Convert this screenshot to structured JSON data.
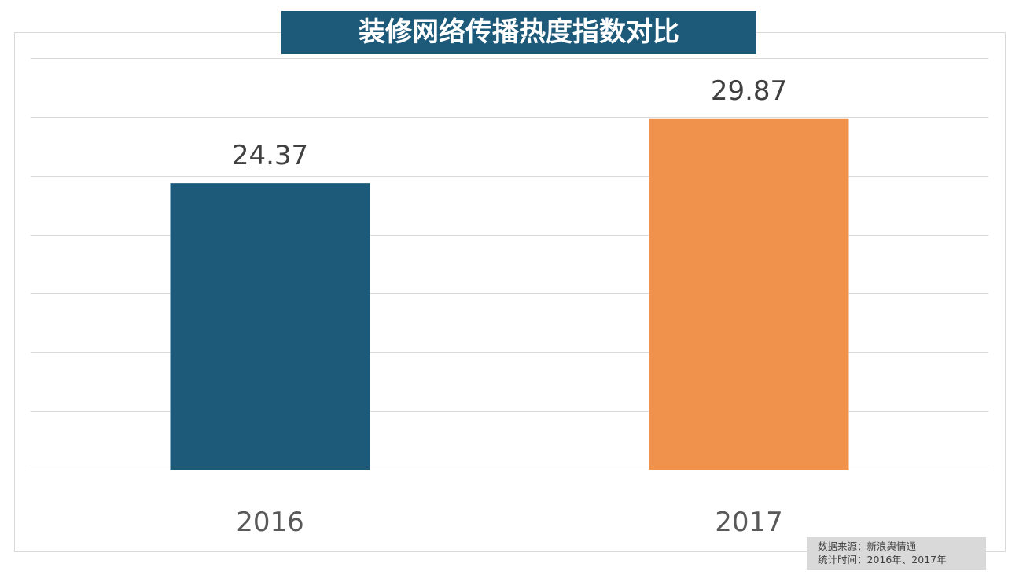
{
  "chart_data": {
    "type": "bar",
    "title": "装修网络传播热度指数对比",
    "categories": [
      "2016",
      "2017"
    ],
    "values": [
      24.37,
      29.87
    ],
    "data_labels": [
      "24.37",
      "29.87"
    ],
    "colors": [
      "#1d5a7a",
      "#f0924b"
    ],
    "ylim": [
      0,
      35
    ],
    "gridline_step": 5,
    "grid": true,
    "xlabel": "",
    "ylabel": ""
  },
  "source": {
    "line1": "数据来源：新浪舆情通",
    "line2": "统计时间：2016年、2017年"
  }
}
